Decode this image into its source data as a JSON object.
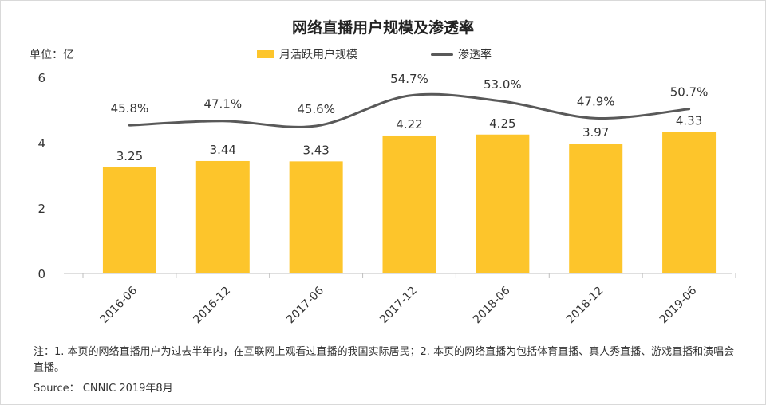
{
  "chart_data": {
    "type": "bar",
    "title": "网络直播用户规模及渗透率",
    "unit_label": "单位：亿",
    "categories": [
      "2016-06",
      "2016-12",
      "2017-06",
      "2017-12",
      "2018-06",
      "2018-12",
      "2019-06"
    ],
    "series": [
      {
        "name": "月活跃用户规模",
        "type": "bar",
        "values": [
          3.25,
          3.44,
          3.43,
          4.22,
          4.25,
          3.97,
          4.33
        ],
        "labels": [
          "3.25",
          "3.44",
          "3.43",
          "4.22",
          "4.25",
          "3.97",
          "4.33"
        ],
        "color": "#FDC52B"
      },
      {
        "name": "渗透率",
        "type": "line",
        "values": [
          45.8,
          47.1,
          45.6,
          54.7,
          53.0,
          47.9,
          50.7
        ],
        "labels": [
          "45.8%",
          "47.1%",
          "45.6%",
          "54.7%",
          "53.0%",
          "47.9%",
          "50.7%"
        ],
        "color": "#595959"
      }
    ],
    "ylim": [
      0,
      6
    ],
    "yticks": [
      "0",
      "2",
      "4",
      "6"
    ],
    "xlabel": "",
    "ylabel": "",
    "legend_position": "top-center",
    "grid": false
  },
  "footnote": "注：1. 本页的网络直播用户为过去半年内，在互联网上观看过直播的我国实际居民；2. 本页的网络直播为包括体育直播、真人秀直播、游戏直播和演唱会直播。",
  "source": "Source： CNNIC 2019年8月"
}
